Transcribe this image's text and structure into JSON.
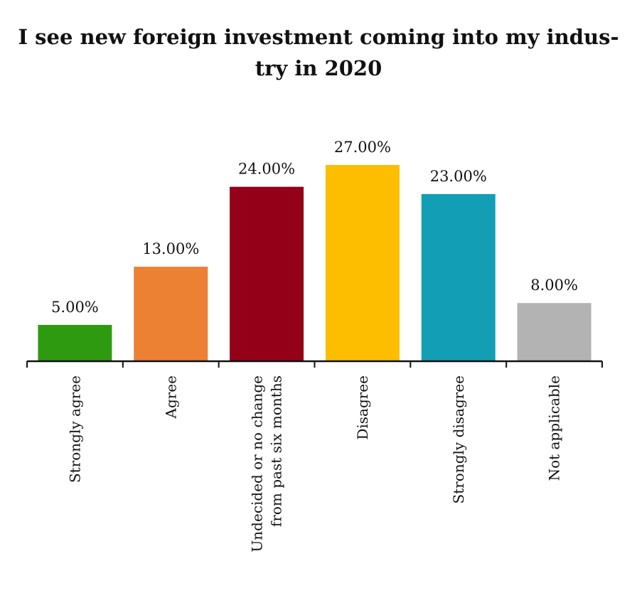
{
  "title_lines": [
    "I see new foreign investment coming into my indus-",
    "try in 2020"
  ],
  "chart_data": {
    "type": "bar",
    "title": "I see new foreign investment coming into my industry in 2020",
    "xlabel": "",
    "ylabel": "",
    "ylim": [
      0,
      27
    ],
    "grid": false,
    "legend": "none",
    "categories": [
      [
        "Strongly agree"
      ],
      [
        "Agree"
      ],
      [
        "Undecided or no change",
        "from past six months"
      ],
      [
        "Disagree"
      ],
      [
        "Strongly disagree"
      ],
      [
        "Not applicable"
      ]
    ],
    "values": [
      5,
      13,
      24,
      27,
      23,
      8
    ],
    "value_labels": [
      "5.00%",
      "13.00%",
      "24.00%",
      "27.00%",
      "23.00%",
      "8.00%"
    ],
    "colors": [
      "#2E9A0F",
      "#EC8033",
      "#950019",
      "#FDBE00",
      "#129FB5",
      "#B3B3B3"
    ]
  }
}
